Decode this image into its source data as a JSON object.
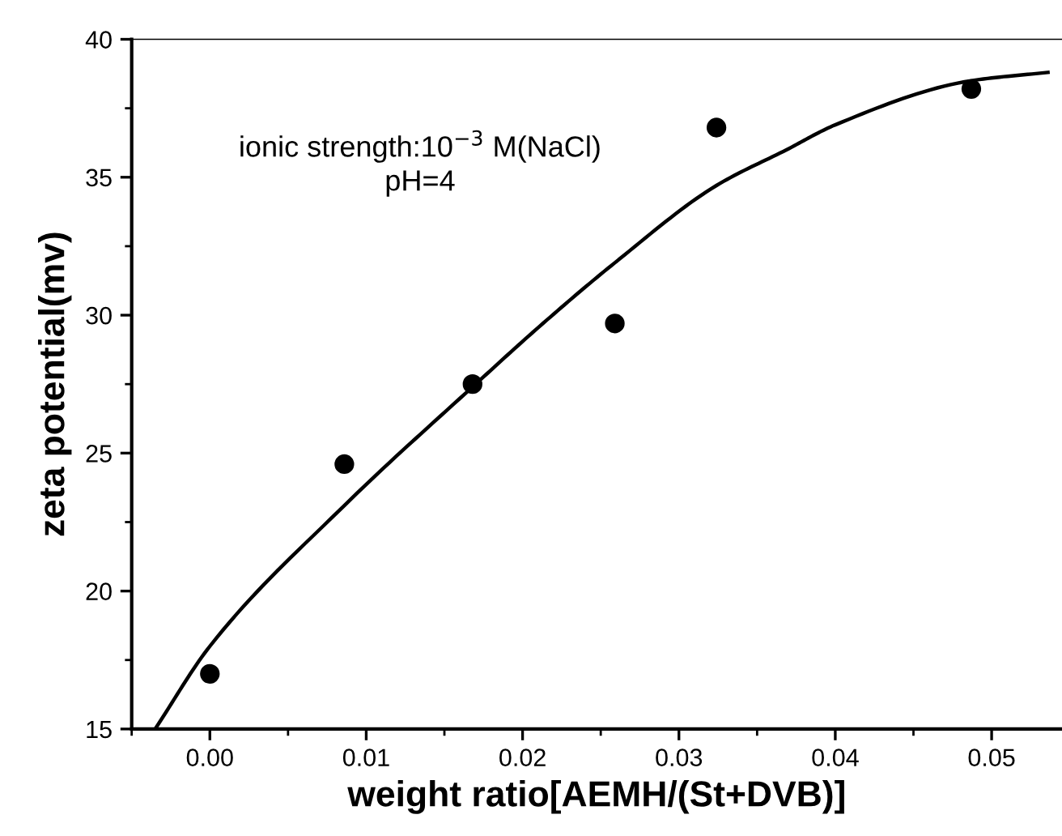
{
  "chart_data": {
    "type": "scatter",
    "xlabel": "weight ratio[AEMH/(St+DVB)]",
    "ylabel": "zeta potential(mv)",
    "annotations": [
      "ionic strength:10$^{−3}$ M(NaCl)\npH=4"
    ],
    "series": [
      {
        "color": "#000000",
        "marker": "circle",
        "x": [
          0.0,
          0.0086,
          0.0168,
          0.0259,
          0.0324,
          0.0487
        ],
        "values": [
          17.0,
          24.6,
          27.5,
          29.7,
          36.8,
          38.2
        ]
      },
      {
        "type": "line",
        "color": "#000000",
        "marker": "none",
        "line_style": "solid",
        "x": [
          -0.0035,
          0.0,
          0.0086,
          0.0168,
          0.0213,
          0.0259,
          0.0324,
          0.0369,
          0.04,
          0.0487,
          0.0536
        ],
        "values": [
          15.0,
          18.0,
          23.1,
          27.4,
          29.7,
          31.9,
          34.7,
          36.0,
          36.9,
          38.5,
          38.8
        ]
      }
    ],
    "xlim": [
      -0.005,
      0.0545
    ],
    "ylim": [
      15,
      40
    ],
    "xticks": [
      {
        "value": 0.0,
        "label": "0.00"
      },
      {
        "value": 0.01,
        "label": "0.01"
      },
      {
        "value": 0.02,
        "label": "0.02"
      },
      {
        "value": 0.03,
        "label": "0.03"
      },
      {
        "value": 0.04,
        "label": "0.04"
      },
      {
        "value": 0.05,
        "label": "0.05"
      }
    ],
    "yticks": [
      15,
      20,
      25,
      30,
      35,
      40
    ],
    "grid": false,
    "legend": false
  }
}
